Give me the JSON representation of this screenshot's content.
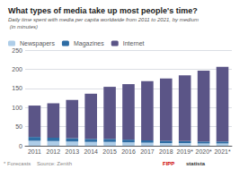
{
  "chart_data": {
    "type": "bar",
    "title": "What types of media take up most people's time?",
    "subtitle": "Daily time spent with media per capita worldwide from 2011 to 2021, by medium (in minutes)",
    "categories": [
      "2011",
      "2012",
      "2013",
      "2014",
      "2015",
      "2016",
      "2017",
      "2018",
      "2019*",
      "2020*",
      "2021*"
    ],
    "series": [
      {
        "name": "Newspapers",
        "color": "#aecde8",
        "values": [
          13,
          12,
          11,
          10,
          10,
          9,
          8,
          7,
          7,
          6,
          6
        ]
      },
      {
        "name": "Magazines",
        "color": "#2e6da4",
        "values": [
          10,
          9,
          9,
          8,
          8,
          7,
          6,
          6,
          5,
          5,
          5
        ]
      },
      {
        "name": "Internet",
        "color": "#5b5587",
        "values": [
          82,
          90,
          100,
          118,
          136,
          145,
          155,
          163,
          172,
          185,
          195
        ]
      }
    ],
    "stacked": true,
    "ylim": [
      0,
      250
    ],
    "yticks": [
      0,
      50,
      100,
      150,
      200,
      250
    ],
    "grid": true,
    "legend": "upper left",
    "annotations": [
      "* Forecasts    Source: Zenith",
      "FIPP",
      "statista"
    ]
  }
}
